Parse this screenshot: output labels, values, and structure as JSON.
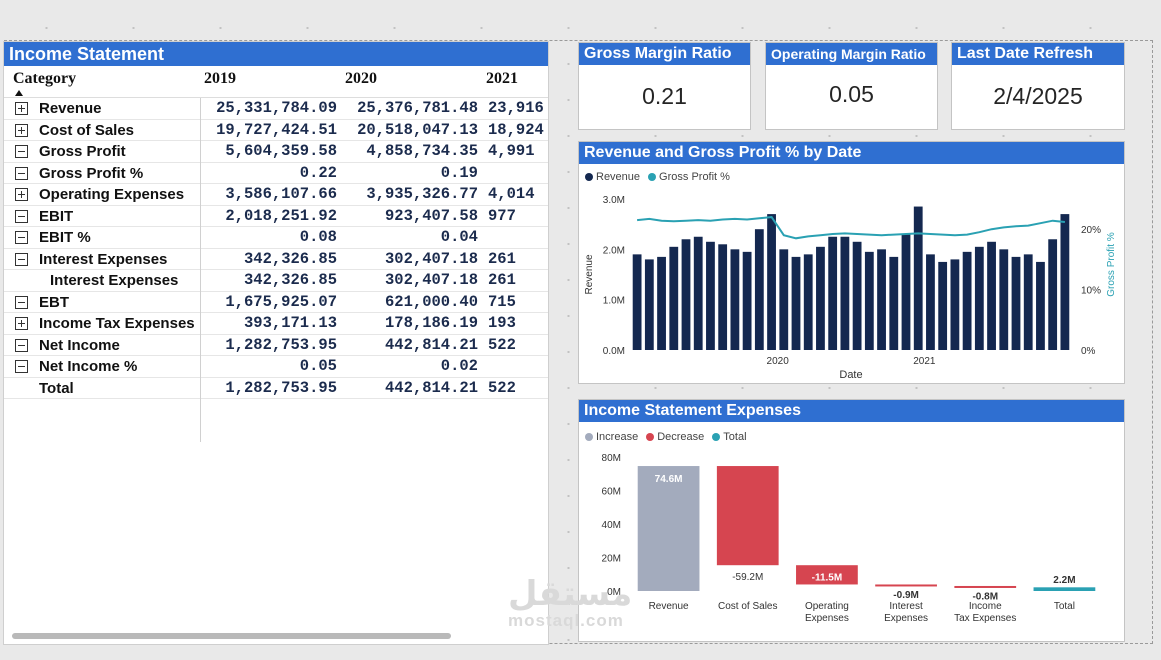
{
  "income_statement": {
    "title": "Income Statement",
    "header": {
      "category": "Category",
      "years": [
        "2019",
        "2020",
        "2021"
      ]
    },
    "rows": [
      {
        "label": "Revenue",
        "expander": "plus",
        "v2019": "25,331,784.09",
        "v2020": "25,376,781.48",
        "v2021": "23,916"
      },
      {
        "label": "Cost of Sales",
        "expander": "plus",
        "v2019": "19,727,424.51",
        "v2020": "20,518,047.13",
        "v2021": "18,924"
      },
      {
        "label": "Gross Profit",
        "expander": "minus",
        "v2019": "5,604,359.58",
        "v2020": "4,858,734.35",
        "v2021": "4,991"
      },
      {
        "label": "Gross Profit %",
        "expander": "minus",
        "v2019": "0.22",
        "v2020": "0.19",
        "v2021": ""
      },
      {
        "label": "Operating Expenses",
        "expander": "plus",
        "v2019": "3,586,107.66",
        "v2020": "3,935,326.77",
        "v2021": "4,014"
      },
      {
        "label": "EBIT",
        "expander": "minus",
        "v2019": "2,018,251.92",
        "v2020": "923,407.58",
        "v2021": "977"
      },
      {
        "label": "EBIT %",
        "expander": "minus",
        "v2019": "0.08",
        "v2020": "0.04",
        "v2021": ""
      },
      {
        "label": "Interest Expenses",
        "expander": "minus",
        "v2019": "342,326.85",
        "v2020": "302,407.18",
        "v2021": "261"
      },
      {
        "label": "Interest Expenses",
        "expander": "none",
        "v2019": "342,326.85",
        "v2020": "302,407.18",
        "v2021": "261"
      },
      {
        "label": "EBT",
        "expander": "minus",
        "v2019": "1,675,925.07",
        "v2020": "621,000.40",
        "v2021": "715"
      },
      {
        "label": "Income Tax Expenses",
        "expander": "plus",
        "v2019": "393,171.13",
        "v2020": "178,186.19",
        "v2021": "193"
      },
      {
        "label": "Net Income",
        "expander": "minus",
        "v2019": "1,282,753.95",
        "v2020": "442,814.21",
        "v2021": "522"
      },
      {
        "label": "Net Income %",
        "expander": "minus",
        "v2019": "0.05",
        "v2020": "0.02",
        "v2021": ""
      },
      {
        "label": "Total",
        "expander": "total",
        "v2019": "1,282,753.95",
        "v2020": "442,814.21",
        "v2021": "522"
      }
    ]
  },
  "kpis": [
    {
      "title": "Gross Margin Ratio",
      "value": "0.21"
    },
    {
      "title": "Operating Margin Ratio",
      "value": "0.05"
    },
    {
      "title": "Last Date Refresh",
      "value": "2/4/2025"
    }
  ],
  "colors": {
    "header_blue": "#2f6fd1",
    "revenue_bar": "#142850",
    "gross_profit_line": "#2aa1b3",
    "increase": "#a3abbd",
    "decrease": "#d64550",
    "total": "#2aa1b3"
  },
  "revenue_chart": {
    "title": "Revenue and Gross Profit % by Date",
    "legend": [
      "Revenue",
      "Gross Profit %"
    ],
    "xlabel": "Date",
    "ylabel": "Revenue",
    "y2label": "Gross Profit %"
  },
  "expenses_chart": {
    "title": "Income Statement Expenses",
    "legend": [
      "Increase",
      "Decrease",
      "Total"
    ]
  },
  "chart_data": [
    {
      "type": "bar",
      "title": "Revenue and Gross Profit % by Date",
      "xlabel": "Date",
      "ylabel": "Revenue",
      "y2label": "Gross Profit %",
      "x_tick_labels": [
        "2020",
        "2021"
      ],
      "y_ticks": [
        "0.0M",
        "1.0M",
        "2.0M",
        "3.0M"
      ],
      "y2_ticks": [
        "0%",
        "10%",
        "20%"
      ],
      "ylim": [
        0,
        3000000
      ],
      "y2lim": [
        0,
        0.25
      ],
      "legend_position": "top-left",
      "series": [
        {
          "name": "Revenue",
          "kind": "bar",
          "values": [
            1900000,
            1800000,
            1850000,
            2050000,
            2200000,
            2250000,
            2150000,
            2100000,
            2000000,
            1950000,
            2400000,
            2700000,
            2000000,
            1850000,
            1900000,
            2050000,
            2250000,
            2250000,
            2150000,
            1950000,
            2000000,
            1850000,
            2300000,
            2850000,
            1900000,
            1750000,
            1800000,
            1950000,
            2050000,
            2150000,
            2000000,
            1850000,
            1900000,
            1750000,
            2200000,
            2700000
          ]
        },
        {
          "name": "Gross Profit %",
          "kind": "line",
          "values": [
            0.215,
            0.217,
            0.214,
            0.213,
            0.214,
            0.215,
            0.214,
            0.216,
            0.217,
            0.216,
            0.218,
            0.22,
            0.19,
            0.185,
            0.188,
            0.19,
            0.192,
            0.193,
            0.192,
            0.191,
            0.19,
            0.191,
            0.192,
            0.193,
            0.192,
            0.191,
            0.19,
            0.191,
            0.195,
            0.2,
            0.203,
            0.205,
            0.206,
            0.21,
            0.214,
            0.212
          ]
        }
      ]
    },
    {
      "type": "waterfall",
      "title": "Income Statement Expenses",
      "categories": [
        "Revenue",
        "Cost of Sales",
        "Operating Expenses",
        "Interest Expenses",
        "Income Tax Expenses",
        "Total"
      ],
      "values": [
        74.6,
        -59.2,
        -11.5,
        -0.9,
        -0.8,
        2.2
      ],
      "kinds": [
        "increase",
        "decrease",
        "decrease",
        "decrease",
        "decrease",
        "total"
      ],
      "data_labels": [
        "74.6M",
        "-59.2M",
        "-11.5M",
        "-0.9M",
        "-0.8M",
        "2.2M"
      ],
      "unit": "M",
      "y_ticks": [
        "0M",
        "20M",
        "40M",
        "60M",
        "80M"
      ],
      "ylim": [
        0,
        80
      ],
      "legend_position": "top-left"
    }
  ]
}
